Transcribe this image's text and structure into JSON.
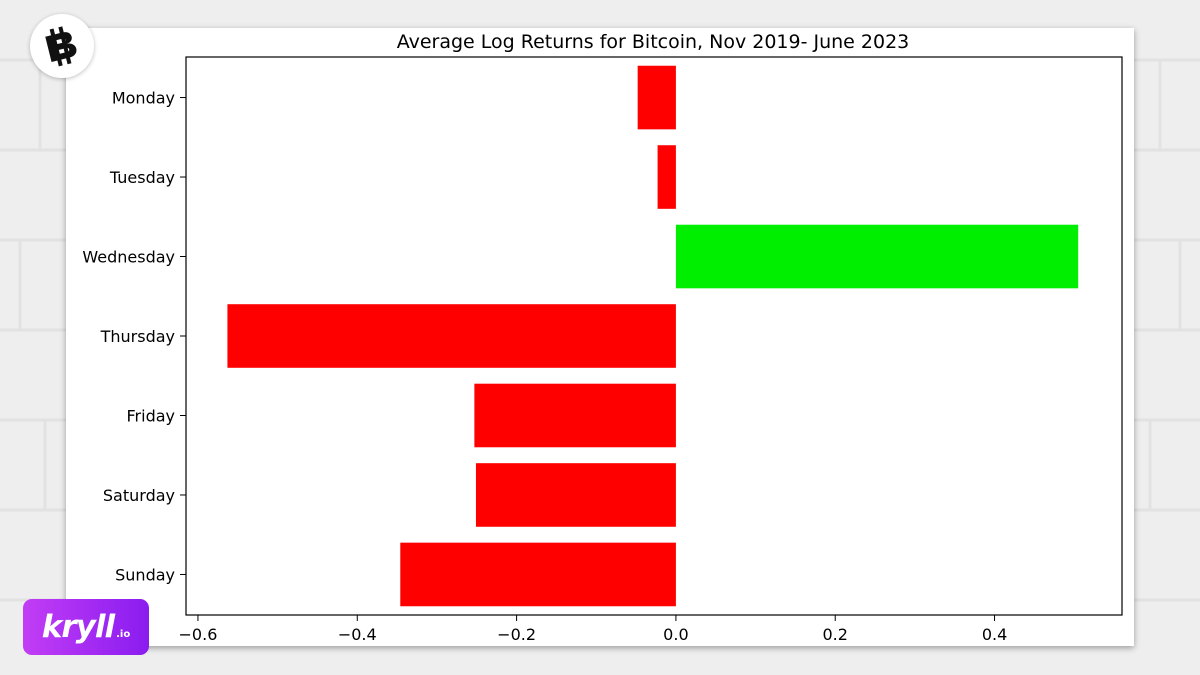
{
  "chart_data": {
    "type": "bar",
    "orientation": "horizontal",
    "title": "Average Log Returns for Bitcoin, Nov 2019- June 2023",
    "xlabel": "",
    "ylabel": "",
    "categories": [
      "Monday",
      "Tuesday",
      "Wednesday",
      "Thursday",
      "Friday",
      "Saturday",
      "Sunday"
    ],
    "values": [
      -0.048,
      -0.023,
      0.505,
      -0.563,
      -0.253,
      -0.251,
      -0.346
    ],
    "xlim": [
      -0.615,
      0.56
    ],
    "xticks": [
      -0.6,
      -0.4,
      -0.2,
      0.0,
      0.2,
      0.4
    ],
    "xtick_labels": [
      "−0.6",
      "−0.4",
      "−0.2",
      "0.0",
      "0.2",
      "0.4"
    ],
    "colors": {
      "negative": "#ff0000",
      "positive": "#00ee00"
    },
    "grid": false,
    "legend": false
  },
  "branding": {
    "logo_icon": "bitcoin-logo-icon",
    "kryll_word": "kryll",
    "kryll_suffix": ".io",
    "kryll_color": "#a52cf2"
  }
}
